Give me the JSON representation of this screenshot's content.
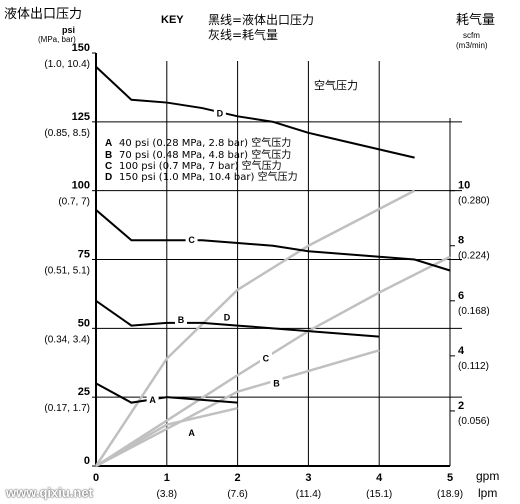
{
  "chart_data": {
    "type": "line",
    "title": "",
    "key_label": "KEY",
    "legend_lines": [
      "黑线=液体出口压力",
      "灰线=耗气量"
    ],
    "y_left_label": "液体出口压力",
    "y_left_unit1": "psi",
    "y_left_unit2": "(MPa, bar)",
    "y_right_label": "耗气量",
    "y_right_unit1": "scfm",
    "y_right_unit2": "(m3/min)",
    "x_units": [
      "gpm",
      "lpm"
    ],
    "x_ticks": [
      {
        "v": 0,
        "label": "0",
        "sub": ""
      },
      {
        "v": 1,
        "label": "1",
        "sub": "(3.8)"
      },
      {
        "v": 2,
        "label": "2",
        "sub": "(7.6)"
      },
      {
        "v": 3,
        "label": "3",
        "sub": "(11.4)"
      },
      {
        "v": 4,
        "label": "4",
        "sub": "(15.1)"
      },
      {
        "v": 5,
        "label": "5",
        "sub": "(18.9)"
      }
    ],
    "y_left_ticks": [
      {
        "v": 150,
        "label": "150",
        "sub": "(1.0, 10.4)"
      },
      {
        "v": 125,
        "label": "125",
        "sub": "(0.85, 8.5)"
      },
      {
        "v": 100,
        "label": "100",
        "sub": "(0.7, 7)"
      },
      {
        "v": 75,
        "label": "75",
        "sub": "(0.51, 5.1)"
      },
      {
        "v": 50,
        "label": "50",
        "sub": "(0.34, 3.4)"
      },
      {
        "v": 25,
        "label": "25",
        "sub": "(0.17, 1.7)"
      },
      {
        "v": 0,
        "label": "0",
        "sub": ""
      }
    ],
    "y_right_ticks": [
      {
        "v": 10,
        "label": "10",
        "sub": "(0.280)"
      },
      {
        "v": 8,
        "label": "8",
        "sub": "(0.224)"
      },
      {
        "v": 6,
        "label": "6",
        "sub": "(0.168)"
      },
      {
        "v": 4,
        "label": "4",
        "sub": "(0.112)"
      },
      {
        "v": 2,
        "label": "2",
        "sub": "(0.056)"
      }
    ],
    "xlim": [
      0,
      5
    ],
    "ylim_left": [
      0,
      150
    ],
    "ylim_right": [
      0,
      15
    ],
    "grid": true,
    "air_pressure_legend": [
      {
        "letter": "A",
        "text": "40 psi (0.28 MPa, 2.8 bar) 空气压力"
      },
      {
        "letter": "B",
        "text": "70 psi (0.48 MPa, 4.8 bar) 空气压力"
      },
      {
        "letter": "C",
        "text": "100 psi (0.7 MPa, 7 bar) 空气压力"
      },
      {
        "letter": "D",
        "text": "150 psi (1.0 MPa, 10.4 bar) 空气压力"
      }
    ],
    "black_area_label": "空气压力",
    "watermark": "www.qixiu.net",
    "colors": {
      "fluid": "#000000",
      "air": "#c0c0c0",
      "grid": "#000000"
    },
    "fluid_series": [
      {
        "name": "D",
        "x": [
          0,
          0.5,
          1.0,
          1.5,
          2.0,
          2.5,
          3.0,
          3.5,
          4.0,
          4.5
        ],
        "y": [
          145,
          133,
          132,
          130,
          127,
          125,
          121,
          118,
          115,
          112
        ],
        "label_at": [
          1.75,
          128
        ]
      },
      {
        "name": "C",
        "x": [
          0,
          0.5,
          1.0,
          1.5,
          2.0,
          2.5,
          3.0,
          3.5,
          4.0,
          4.5,
          5.0
        ],
        "y": [
          93,
          82,
          82,
          82,
          81,
          80,
          78,
          77,
          76,
          75,
          71
        ],
        "label_at": [
          1.35,
          82
        ]
      },
      {
        "name": "B",
        "x": [
          0,
          0.5,
          1.0,
          1.5,
          2.0,
          2.5,
          3.0,
          3.5,
          4.0
        ],
        "y": [
          60,
          51,
          52,
          52,
          51,
          50,
          49,
          48,
          47
        ],
        "label_at": [
          1.2,
          53
        ]
      },
      {
        "name": "A",
        "x": [
          0,
          0.5,
          1.0,
          1.5,
          2.0
        ],
        "y": [
          30,
          23,
          25,
          24,
          23
        ],
        "label_at": [
          0.8,
          24
        ]
      }
    ],
    "air_series": [
      {
        "name": "D",
        "x": [
          0,
          1,
          2,
          3,
          4.5
        ],
        "y": [
          0,
          3.9,
          6.4,
          8.0,
          10.0
        ],
        "label_at": [
          1.85,
          5.4
        ]
      },
      {
        "name": "C",
        "x": [
          0,
          2,
          3,
          4,
          5
        ],
        "y": [
          0,
          3.3,
          4.9,
          6.3,
          7.6
        ],
        "label_at": [
          2.4,
          3.9
        ]
      },
      {
        "name": "B",
        "x": [
          0,
          2,
          4
        ],
        "y": [
          0,
          2.7,
          4.2
        ],
        "label_at": [
          2.55,
          3.0
        ]
      },
      {
        "name": "A",
        "x": [
          0,
          1,
          2
        ],
        "y": [
          0,
          1.5,
          2.1
        ],
        "label_at": [
          1.35,
          1.2
        ]
      }
    ]
  }
}
